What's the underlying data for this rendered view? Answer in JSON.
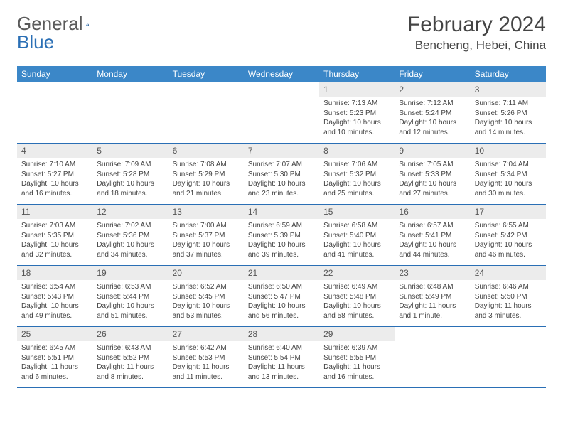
{
  "logo": {
    "part1": "General",
    "part2": "Blue"
  },
  "title": "February 2024",
  "location": "Bencheng, Hebei, China",
  "colors": {
    "header_bg": "#3b87c8",
    "header_text": "#ffffff",
    "rule": "#2a6fb5",
    "daynum_bg": "#ececec",
    "logo_gray": "#5a5a5a",
    "logo_blue": "#2a6fb5"
  },
  "weekdays": [
    "Sunday",
    "Monday",
    "Tuesday",
    "Wednesday",
    "Thursday",
    "Friday",
    "Saturday"
  ],
  "weeks": [
    [
      {
        "empty": true
      },
      {
        "empty": true
      },
      {
        "empty": true
      },
      {
        "empty": true
      },
      {
        "n": "1",
        "sr": "7:13 AM",
        "ss": "5:23 PM",
        "dl": "10 hours and 10 minutes."
      },
      {
        "n": "2",
        "sr": "7:12 AM",
        "ss": "5:24 PM",
        "dl": "10 hours and 12 minutes."
      },
      {
        "n": "3",
        "sr": "7:11 AM",
        "ss": "5:26 PM",
        "dl": "10 hours and 14 minutes."
      }
    ],
    [
      {
        "n": "4",
        "sr": "7:10 AM",
        "ss": "5:27 PM",
        "dl": "10 hours and 16 minutes."
      },
      {
        "n": "5",
        "sr": "7:09 AM",
        "ss": "5:28 PM",
        "dl": "10 hours and 18 minutes."
      },
      {
        "n": "6",
        "sr": "7:08 AM",
        "ss": "5:29 PM",
        "dl": "10 hours and 21 minutes."
      },
      {
        "n": "7",
        "sr": "7:07 AM",
        "ss": "5:30 PM",
        "dl": "10 hours and 23 minutes."
      },
      {
        "n": "8",
        "sr": "7:06 AM",
        "ss": "5:32 PM",
        "dl": "10 hours and 25 minutes."
      },
      {
        "n": "9",
        "sr": "7:05 AM",
        "ss": "5:33 PM",
        "dl": "10 hours and 27 minutes."
      },
      {
        "n": "10",
        "sr": "7:04 AM",
        "ss": "5:34 PM",
        "dl": "10 hours and 30 minutes."
      }
    ],
    [
      {
        "n": "11",
        "sr": "7:03 AM",
        "ss": "5:35 PM",
        "dl": "10 hours and 32 minutes."
      },
      {
        "n": "12",
        "sr": "7:02 AM",
        "ss": "5:36 PM",
        "dl": "10 hours and 34 minutes."
      },
      {
        "n": "13",
        "sr": "7:00 AM",
        "ss": "5:37 PM",
        "dl": "10 hours and 37 minutes."
      },
      {
        "n": "14",
        "sr": "6:59 AM",
        "ss": "5:39 PM",
        "dl": "10 hours and 39 minutes."
      },
      {
        "n": "15",
        "sr": "6:58 AM",
        "ss": "5:40 PM",
        "dl": "10 hours and 41 minutes."
      },
      {
        "n": "16",
        "sr": "6:57 AM",
        "ss": "5:41 PM",
        "dl": "10 hours and 44 minutes."
      },
      {
        "n": "17",
        "sr": "6:55 AM",
        "ss": "5:42 PM",
        "dl": "10 hours and 46 minutes."
      }
    ],
    [
      {
        "n": "18",
        "sr": "6:54 AM",
        "ss": "5:43 PM",
        "dl": "10 hours and 49 minutes."
      },
      {
        "n": "19",
        "sr": "6:53 AM",
        "ss": "5:44 PM",
        "dl": "10 hours and 51 minutes."
      },
      {
        "n": "20",
        "sr": "6:52 AM",
        "ss": "5:45 PM",
        "dl": "10 hours and 53 minutes."
      },
      {
        "n": "21",
        "sr": "6:50 AM",
        "ss": "5:47 PM",
        "dl": "10 hours and 56 minutes."
      },
      {
        "n": "22",
        "sr": "6:49 AM",
        "ss": "5:48 PM",
        "dl": "10 hours and 58 minutes."
      },
      {
        "n": "23",
        "sr": "6:48 AM",
        "ss": "5:49 PM",
        "dl": "11 hours and 1 minute."
      },
      {
        "n": "24",
        "sr": "6:46 AM",
        "ss": "5:50 PM",
        "dl": "11 hours and 3 minutes."
      }
    ],
    [
      {
        "n": "25",
        "sr": "6:45 AM",
        "ss": "5:51 PM",
        "dl": "11 hours and 6 minutes."
      },
      {
        "n": "26",
        "sr": "6:43 AM",
        "ss": "5:52 PM",
        "dl": "11 hours and 8 minutes."
      },
      {
        "n": "27",
        "sr": "6:42 AM",
        "ss": "5:53 PM",
        "dl": "11 hours and 11 minutes."
      },
      {
        "n": "28",
        "sr": "6:40 AM",
        "ss": "5:54 PM",
        "dl": "11 hours and 13 minutes."
      },
      {
        "n": "29",
        "sr": "6:39 AM",
        "ss": "5:55 PM",
        "dl": "11 hours and 16 minutes."
      },
      {
        "empty": true
      },
      {
        "empty": true
      }
    ]
  ],
  "labels": {
    "sunrise": "Sunrise: ",
    "sunset": "Sunset: ",
    "daylight": "Daylight: "
  }
}
